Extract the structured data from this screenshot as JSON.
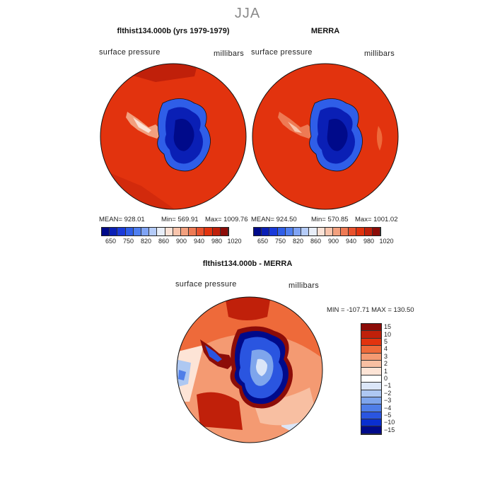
{
  "figure_title": "JJA",
  "panel1": {
    "title": "flthist134.000b (yrs 1979-1979)",
    "left_label": "surface pressure",
    "right_label": "millibars",
    "stats": {
      "mean": "MEAN= 928.01",
      "min": "Min= 569.91",
      "max": "Max= 1009.76"
    }
  },
  "panel2": {
    "title": "MERRA",
    "left_label": "surface pressure",
    "right_label": "millibars",
    "stats": {
      "mean": "MEAN= 924.50",
      "min": "Min= 570.85",
      "max": "Max= 1001.02"
    }
  },
  "panel3": {
    "title": "flthist134.000b - MERRA",
    "left_label": "surface pressure",
    "right_label": "millibars",
    "minmax": "MIN = -107.71  MAX = 130.50"
  },
  "colorbar_abs": {
    "colors": [
      "#000a8a",
      "#0a1fb5",
      "#1a3ad9",
      "#2f5ee8",
      "#4f7ff0",
      "#7fa3f4",
      "#b4cbf8",
      "#e8eef8",
      "#fbe2d6",
      "#f8c4ac",
      "#f2a07e",
      "#ee7a54",
      "#e9512c",
      "#e2330e",
      "#c0200a",
      "#8c0c08"
    ],
    "ticks": [
      "650",
      "750",
      "820",
      "860",
      "900",
      "940",
      "980",
      "1020"
    ]
  },
  "colorbar_diff": {
    "colors": [
      "#8c0c08",
      "#c0200a",
      "#e2330e",
      "#ee6a3a",
      "#f49a72",
      "#f8bfa2",
      "#fde4d6",
      "#ffffff",
      "#dbe6f8",
      "#aec8f2",
      "#7ea5ec",
      "#4f7ee8",
      "#2a55e0",
      "#0a2fd0",
      "#000a8a"
    ],
    "ticks": [
      "15",
      "10",
      "5",
      "4",
      "3",
      "2",
      "1",
      "0",
      "−1",
      "−2",
      "−3",
      "−4",
      "−5",
      "−10",
      "−15"
    ]
  }
}
